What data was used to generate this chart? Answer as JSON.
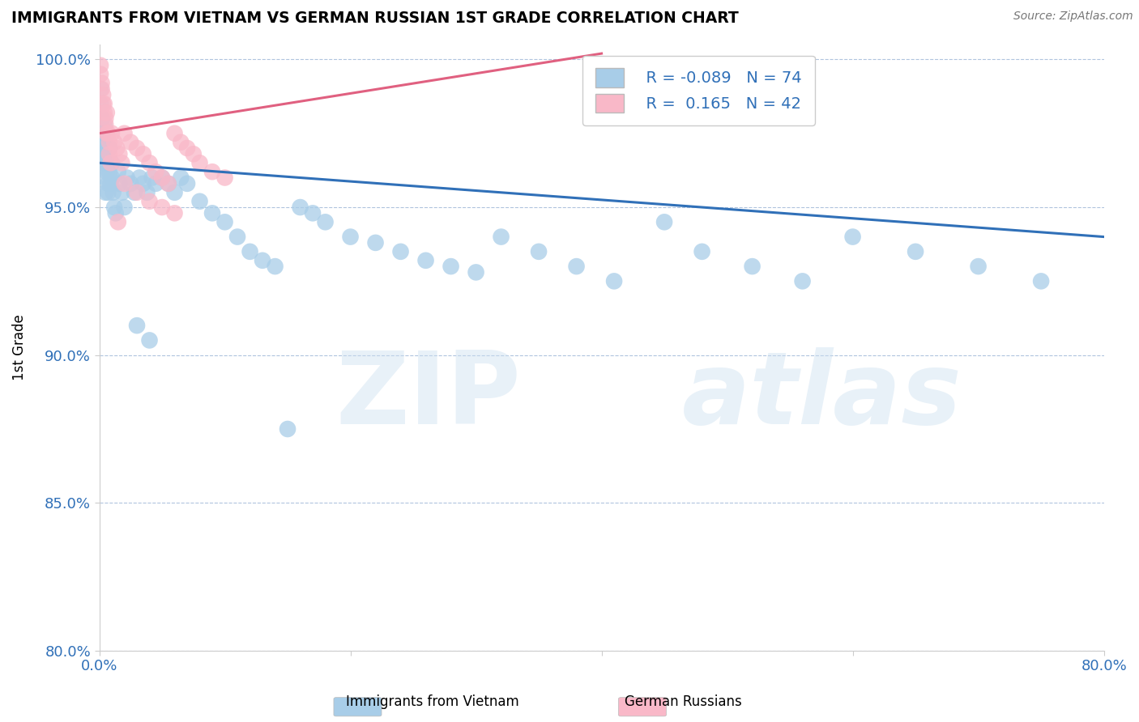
{
  "title": "IMMIGRANTS FROM VIETNAM VS GERMAN RUSSIAN 1ST GRADE CORRELATION CHART",
  "source": "Source: ZipAtlas.com",
  "ylabel": "1st Grade",
  "xlabel_legend1": "Immigrants from Vietnam",
  "xlabel_legend2": "German Russians",
  "xlim": [
    0.0,
    0.8
  ],
  "ylim": [
    0.8,
    1.005
  ],
  "xticks": [
    0.0,
    0.2,
    0.4,
    0.6,
    0.8
  ],
  "xticklabels": [
    "0.0%",
    "",
    "",
    "",
    "80.0%"
  ],
  "yticks": [
    0.8,
    0.85,
    0.9,
    0.95,
    1.0
  ],
  "yticklabels": [
    "80.0%",
    "85.0%",
    "90.0%",
    "95.0%",
    "100.0%"
  ],
  "R_blue": -0.089,
  "N_blue": 74,
  "R_pink": 0.165,
  "N_pink": 42,
  "blue_color": "#a8cde8",
  "pink_color": "#f9b8c8",
  "blue_line_color": "#3070b8",
  "pink_line_color": "#e06080",
  "blue_line_x": [
    0.0,
    0.8
  ],
  "blue_line_y": [
    0.965,
    0.94
  ],
  "pink_line_x": [
    0.0,
    0.4
  ],
  "pink_line_y": [
    0.975,
    1.002
  ],
  "blue_scatter_x": [
    0.001,
    0.001,
    0.002,
    0.002,
    0.002,
    0.003,
    0.003,
    0.003,
    0.004,
    0.004,
    0.004,
    0.005,
    0.005,
    0.005,
    0.006,
    0.006,
    0.007,
    0.007,
    0.008,
    0.008,
    0.009,
    0.01,
    0.01,
    0.011,
    0.012,
    0.013,
    0.015,
    0.016,
    0.018,
    0.02,
    0.022,
    0.025,
    0.028,
    0.032,
    0.035,
    0.038,
    0.042,
    0.045,
    0.05,
    0.055,
    0.06,
    0.065,
    0.07,
    0.08,
    0.09,
    0.1,
    0.11,
    0.12,
    0.13,
    0.14,
    0.16,
    0.17,
    0.18,
    0.2,
    0.22,
    0.24,
    0.26,
    0.28,
    0.3,
    0.32,
    0.35,
    0.38,
    0.41,
    0.45,
    0.48,
    0.52,
    0.56,
    0.6,
    0.65,
    0.7,
    0.75,
    0.03,
    0.04,
    0.15
  ],
  "blue_scatter_y": [
    0.99,
    0.985,
    0.972,
    0.968,
    0.98,
    0.975,
    0.97,
    0.965,
    0.972,
    0.968,
    0.978,
    0.965,
    0.96,
    0.955,
    0.962,
    0.97,
    0.958,
    0.955,
    0.962,
    0.97,
    0.958,
    0.965,
    0.96,
    0.955,
    0.95,
    0.948,
    0.962,
    0.958,
    0.955,
    0.95,
    0.96,
    0.958,
    0.955,
    0.96,
    0.958,
    0.955,
    0.96,
    0.958,
    0.96,
    0.958,
    0.955,
    0.96,
    0.958,
    0.952,
    0.948,
    0.945,
    0.94,
    0.935,
    0.932,
    0.93,
    0.95,
    0.948,
    0.945,
    0.94,
    0.938,
    0.935,
    0.932,
    0.93,
    0.928,
    0.94,
    0.935,
    0.93,
    0.925,
    0.945,
    0.935,
    0.93,
    0.925,
    0.94,
    0.935,
    0.93,
    0.925,
    0.91,
    0.905,
    0.875
  ],
  "pink_scatter_x": [
    0.001,
    0.001,
    0.002,
    0.002,
    0.003,
    0.003,
    0.004,
    0.004,
    0.005,
    0.005,
    0.006,
    0.006,
    0.007,
    0.008,
    0.008,
    0.009,
    0.01,
    0.012,
    0.014,
    0.016,
    0.018,
    0.02,
    0.025,
    0.03,
    0.035,
    0.04,
    0.045,
    0.05,
    0.055,
    0.06,
    0.065,
    0.07,
    0.075,
    0.08,
    0.09,
    0.1,
    0.02,
    0.03,
    0.04,
    0.05,
    0.06,
    0.015
  ],
  "pink_scatter_y": [
    0.998,
    0.995,
    0.992,
    0.99,
    0.988,
    0.985,
    0.985,
    0.982,
    0.98,
    0.978,
    0.982,
    0.975,
    0.975,
    0.972,
    0.968,
    0.965,
    0.975,
    0.972,
    0.97,
    0.968,
    0.965,
    0.975,
    0.972,
    0.97,
    0.968,
    0.965,
    0.962,
    0.96,
    0.958,
    0.975,
    0.972,
    0.97,
    0.968,
    0.965,
    0.962,
    0.96,
    0.958,
    0.955,
    0.952,
    0.95,
    0.948,
    0.945
  ]
}
